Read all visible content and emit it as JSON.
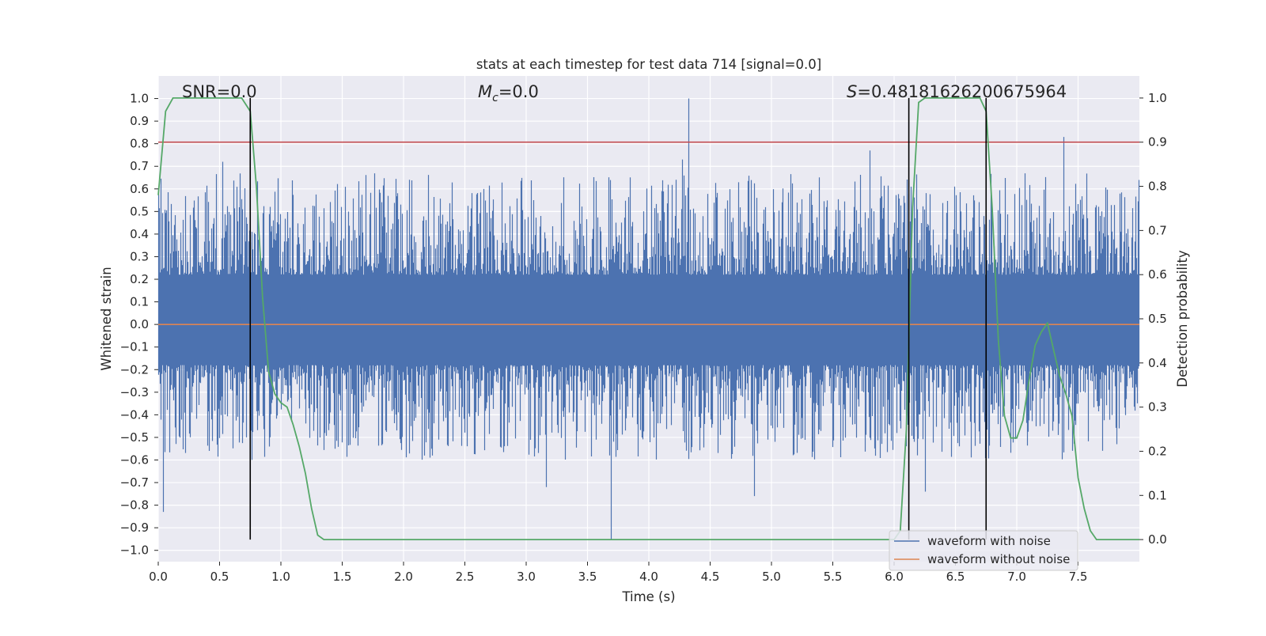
{
  "chart_data": {
    "type": "line",
    "title": "stats at each timestep for test data 714 [signal=0.0]",
    "xlabel": "Time (s)",
    "ylabel_left": "Whitened strain",
    "ylabel_right": "Detection probability",
    "xlim": [
      0.0,
      8.0
    ],
    "ylim_left": [
      -1.05,
      1.1
    ],
    "ylim_right": [
      -0.05,
      1.05
    ],
    "x_ticks": [
      0.0,
      0.5,
      1.0,
      1.5,
      2.0,
      2.5,
      3.0,
      3.5,
      4.0,
      4.5,
      5.0,
      5.5,
      6.0,
      6.5,
      7.0,
      7.5
    ],
    "x_tick_labels": [
      "0.0",
      "0.5",
      "1.0",
      "1.5",
      "2.0",
      "2.5",
      "3.0",
      "3.5",
      "4.0",
      "4.5",
      "5.0",
      "5.5",
      "6.0",
      "6.5",
      "7.0",
      "7.5"
    ],
    "y_left_ticks": [
      1.0,
      0.9,
      0.8,
      0.7,
      0.6,
      0.5,
      0.4,
      0.3,
      0.2,
      0.1,
      0.0,
      -0.1,
      -0.2,
      -0.3,
      -0.4,
      -0.5,
      -0.6,
      -0.7,
      -0.8,
      -0.9,
      -1.0
    ],
    "y_left_tick_labels": [
      "1.0",
      "0.9",
      "0.8",
      "0.7",
      "0.6",
      "0.5",
      "0.4",
      "0.3",
      "0.2",
      "0.1",
      "0.0",
      "−0.1",
      "−0.2",
      "−0.3",
      "−0.4",
      "−0.5",
      "−0.6",
      "−0.7",
      "−0.8",
      "−0.9",
      "−1.0"
    ],
    "y_right_ticks": [
      1.0,
      0.9,
      0.8,
      0.7,
      0.6,
      0.5,
      0.4,
      0.3,
      0.2,
      0.1,
      0.0
    ],
    "y_right_tick_labels": [
      "1.0",
      "0.9",
      "0.8",
      "0.7",
      "0.6",
      "0.5",
      "0.4",
      "0.3",
      "0.2",
      "0.1",
      "0.0"
    ],
    "annotations": {
      "snr": "SNR=0.0",
      "mc_symbol": "M",
      "mc_sub": "c",
      "mc_value": "=0.0",
      "s_symbol": "S",
      "s_value": "=0.48181626200675964"
    },
    "threshold_right": 0.9,
    "threshold_color": "#c44e52",
    "zero_line_color": "#dd8452",
    "noise_color": "#4c72b0",
    "prob_color": "#55a868",
    "vertical_markers_x": [
      0.75,
      6.12,
      6.75
    ],
    "vertical_markers_right_range": [
      0.0,
      1.0
    ],
    "noise_envelope": {
      "typical_amplitude": 0.3,
      "max_spike": 1.0,
      "min_spike": -0.95,
      "spikes": [
        [
          4.32,
          1.0
        ],
        [
          3.69,
          -0.95
        ],
        [
          7.38,
          0.83
        ],
        [
          0.04,
          -0.83
        ],
        [
          0.52,
          0.72
        ],
        [
          4.27,
          0.73
        ],
        [
          5.8,
          0.77
        ],
        [
          3.16,
          -0.72
        ],
        [
          4.86,
          -0.76
        ],
        [
          6.25,
          -0.74
        ]
      ]
    },
    "prob_series": {
      "name": "detection probability",
      "x": [
        0.0,
        0.06,
        0.12,
        0.2,
        0.3,
        0.4,
        0.5,
        0.6,
        0.68,
        0.75,
        0.8,
        0.85,
        0.9,
        0.95,
        1.0,
        1.05,
        1.1,
        1.15,
        1.2,
        1.25,
        1.3,
        1.35,
        1.5,
        2.0,
        3.0,
        4.0,
        5.0,
        5.5,
        6.0,
        6.05,
        6.1,
        6.15,
        6.2,
        6.25,
        6.3,
        6.4,
        6.5,
        6.6,
        6.7,
        6.75,
        6.8,
        6.85,
        6.9,
        6.95,
        7.0,
        7.05,
        7.1,
        7.15,
        7.2,
        7.25,
        7.3,
        7.35,
        7.4,
        7.45,
        7.5,
        7.55,
        7.6,
        7.65,
        7.7,
        7.75,
        7.8,
        7.85,
        7.9,
        7.95,
        8.0
      ],
      "y": [
        0.78,
        0.97,
        1.0,
        1.0,
        1.0,
        1.0,
        1.0,
        1.0,
        1.0,
        0.97,
        0.8,
        0.55,
        0.38,
        0.33,
        0.31,
        0.3,
        0.26,
        0.21,
        0.15,
        0.07,
        0.01,
        0.0,
        0.0,
        0.0,
        0.0,
        0.0,
        0.0,
        0.0,
        0.0,
        0.02,
        0.25,
        0.75,
        0.99,
        1.0,
        1.0,
        1.0,
        1.0,
        1.0,
        1.0,
        0.97,
        0.75,
        0.45,
        0.28,
        0.23,
        0.23,
        0.27,
        0.36,
        0.44,
        0.47,
        0.49,
        0.43,
        0.37,
        0.33,
        0.28,
        0.14,
        0.07,
        0.02,
        0.0,
        0.0,
        0.0,
        0.0,
        0.0,
        0.0,
        0.0,
        0.0
      ]
    },
    "legend": {
      "placement": "bottom-right",
      "entries": [
        {
          "label": "waveform with noise",
          "color": "#4c72b0"
        },
        {
          "label": "waveform without noise",
          "color": "#dd8452"
        }
      ]
    }
  }
}
